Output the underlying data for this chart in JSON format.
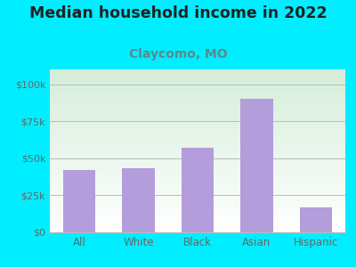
{
  "title": "Median household income in 2022",
  "subtitle": "Claycomo, MO",
  "categories": [
    "All",
    "White",
    "Black",
    "Asian",
    "Hispanic"
  ],
  "values": [
    42000,
    43000,
    57000,
    90000,
    17000
  ],
  "bar_color": "#b39ddb",
  "title_fontsize": 12.5,
  "subtitle_fontsize": 10,
  "subtitle_color": "#5b8a8a",
  "title_color": "#222222",
  "background_outer": "#00eeff",
  "background_inner_top": "#d4edd9",
  "background_inner_bottom": "#ffffff",
  "tick_label_color": "#666666",
  "ylim": [
    0,
    110000
  ],
  "yticks": [
    0,
    25000,
    50000,
    75000,
    100000
  ],
  "ytick_labels": [
    "$0",
    "$25k",
    "$50k",
    "$75k",
    "$100k"
  ],
  "grid_color": "#bbbbbb"
}
